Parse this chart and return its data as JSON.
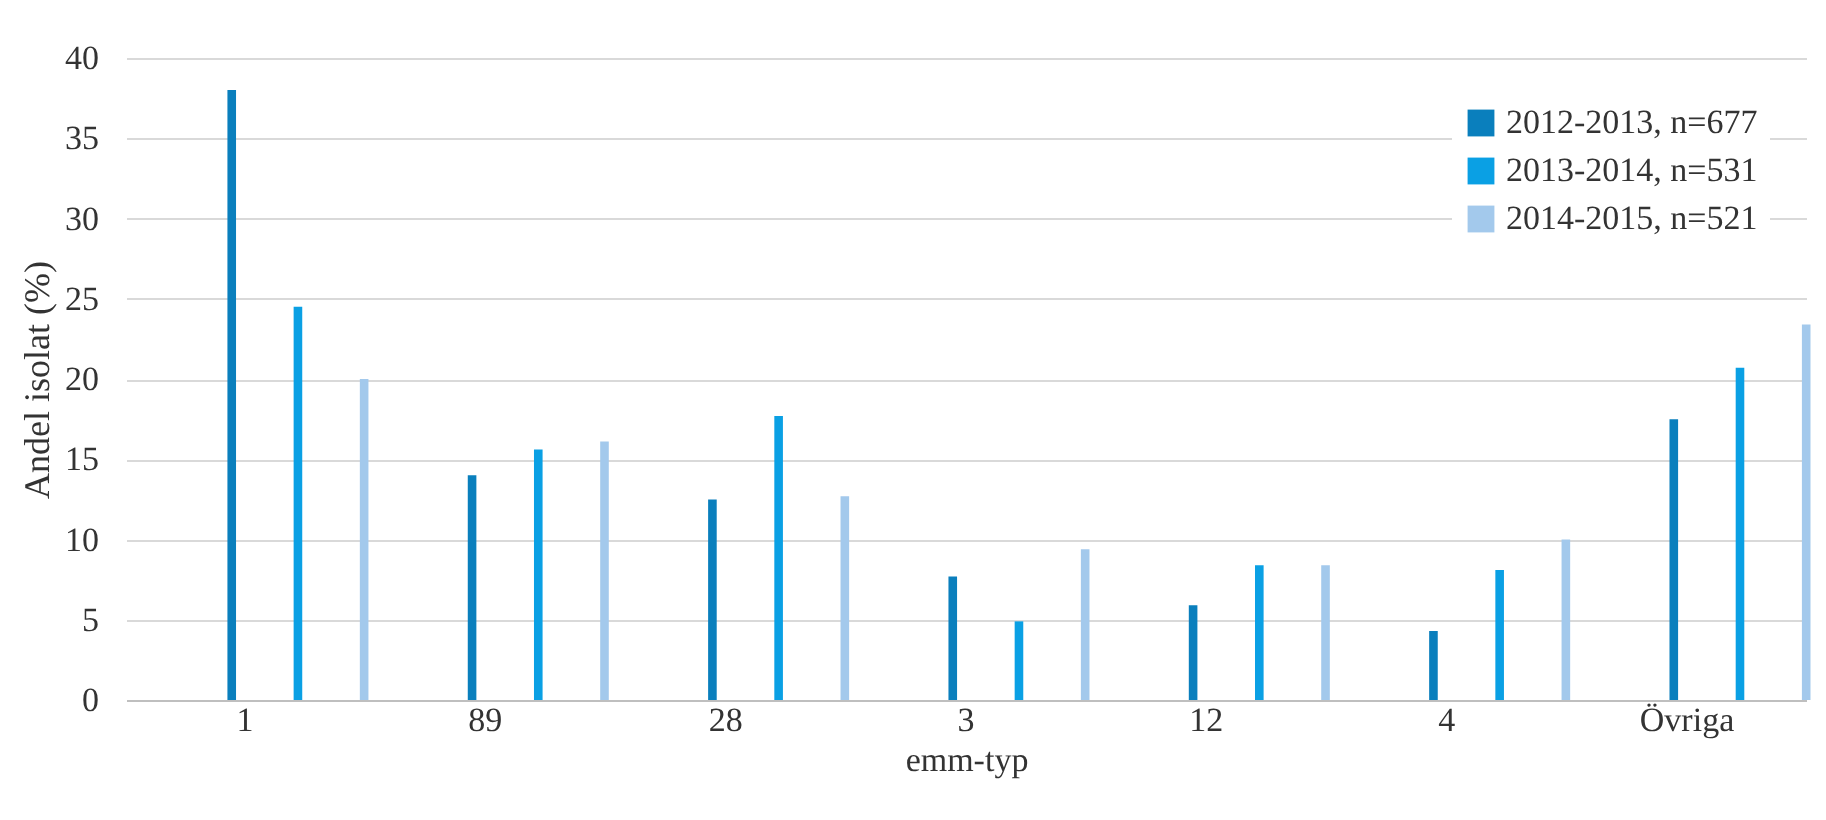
{
  "chart_data": {
    "type": "bar",
    "xlabel": "emm-typ",
    "ylabel": "Andel isolat (%)",
    "categories": [
      "1",
      "89",
      "28",
      "3",
      "12",
      "4",
      "Övriga"
    ],
    "series": [
      {
        "name": "2012-2013, n=677",
        "color": "#0a7fbd",
        "values": [
          38,
          14,
          12.5,
          7.7,
          5.9,
          4.3,
          17.5
        ]
      },
      {
        "name": "2013-2014, n=531",
        "color": "#0aa0e4",
        "values": [
          24.5,
          15.6,
          17.7,
          4.9,
          8.4,
          8.1,
          20.7
        ]
      },
      {
        "name": "2014-2015, n=521",
        "color": "#a3c9ec",
        "values": [
          20,
          16.1,
          12.7,
          9.4,
          8.4,
          10,
          23.4
        ]
      }
    ],
    "ylim": [
      0,
      40
    ],
    "yticks": [
      0,
      5,
      10,
      15,
      20,
      25,
      30,
      35,
      40
    ],
    "grid": "y",
    "legend": "top right"
  }
}
